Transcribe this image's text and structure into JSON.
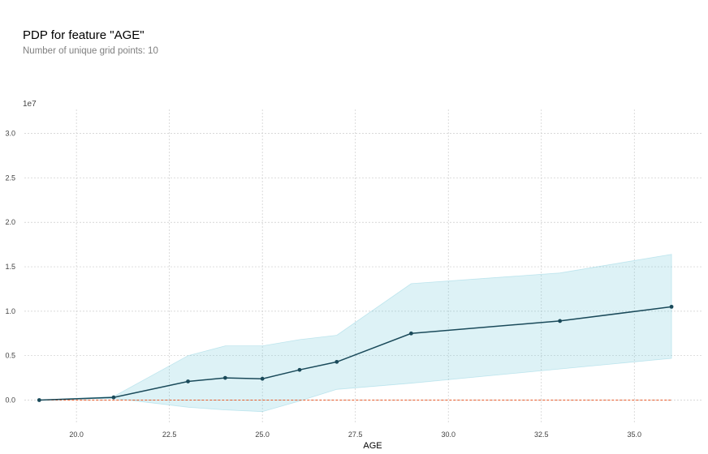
{
  "chart_data": {
    "type": "line",
    "title": "PDP for feature \"AGE\"",
    "subtitle": "Number of unique grid points: 10",
    "scale_label": "1e7",
    "xlabel": "AGE",
    "ylabel": "",
    "x": [
      19,
      21,
      23,
      24,
      25,
      26,
      27,
      29,
      33,
      36
    ],
    "series": [
      {
        "values": [
          0,
          0.03,
          0.21,
          0.25,
          0.24,
          0.34,
          0.43,
          0.75,
          0.89,
          1.05
        ]
      }
    ],
    "band_upper": [
      0,
      0.04,
      0.5,
      0.61,
      0.61,
      0.68,
      0.73,
      1.31,
      1.43,
      1.64
    ],
    "band_lower": [
      0,
      0.02,
      -0.08,
      -0.11,
      -0.13,
      -0.01,
      0.12,
      0.19,
      0.35,
      0.47
    ],
    "baseline": 0,
    "xticks": [
      "20.0",
      "22.5",
      "25.0",
      "27.5",
      "30.0",
      "32.5",
      "35.0"
    ],
    "yticks": [
      "0.0",
      "0.5",
      "1.0",
      "1.5",
      "2.0",
      "2.5",
      "3.0"
    ],
    "xlim": [
      18.6,
      36.85
    ],
    "ylim": [
      -0.26,
      3.27
    ],
    "grid": true,
    "colors": {
      "line": "#1a4a5a",
      "band": "#66c2d7",
      "baseline": "#e75b2a",
      "grid": "#cccccc"
    }
  }
}
